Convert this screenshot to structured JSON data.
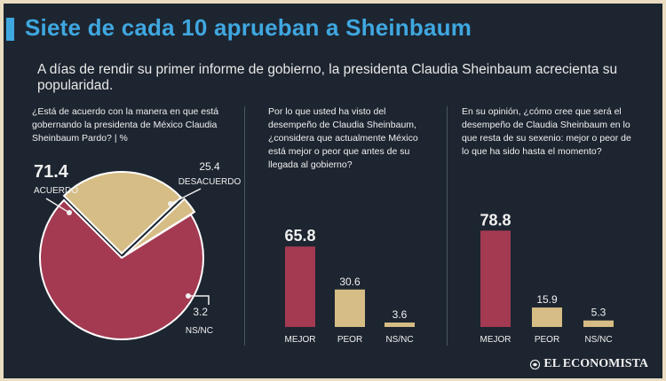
{
  "header": {
    "title": "Siete de cada 10 aprueban a Sheinbaum",
    "subtitle": "A días de rendir su primer informe de gobierno, la presidenta Claudia Sheinbaum acrecienta su popularidad."
  },
  "colors": {
    "background": "#1d2530",
    "accent": "#3fa7e0",
    "maroon": "#a33a52",
    "tan": "#d6bd85",
    "text": "#f0f0f0"
  },
  "brand": {
    "logo_text": "EL ECONOMISTA"
  },
  "chart_data": [
    {
      "type": "pie",
      "question": "¿Está de acuerdo con la manera en que está gobernando la presidenta de México Claudia Sheinbaum Pardo? | %",
      "slices": [
        {
          "label": "ACUERDO",
          "value": 71.4,
          "display": "71.4"
        },
        {
          "label": "DESACUERDO",
          "value": 25.4,
          "display": "25.4"
        },
        {
          "label": "NS/NC",
          "value": 3.2,
          "display": "3.2"
        }
      ]
    },
    {
      "type": "bar",
      "question": "Por lo que usted ha visto del desempeño de Claudia Sheinbaum, ¿considera que actualmente México está mejor o peor que antes de su llegada al gobierno?",
      "categories": [
        "MEJOR",
        "PEOR",
        "NS/NC"
      ],
      "values": [
        65.8,
        30.6,
        3.6
      ],
      "value_labels": [
        "65.8",
        "30.6",
        "3.6"
      ],
      "ylim": [
        0,
        100
      ]
    },
    {
      "type": "bar",
      "question": "En su opinión, ¿cómo cree que será el desempeño de Claudia Sheinbaum en lo que resta de su sexenio: mejor o peor de lo que ha sido hasta el momento?",
      "categories": [
        "MEJOR",
        "PEOR",
        "NS/NC"
      ],
      "values": [
        78.8,
        15.9,
        5.3
      ],
      "value_labels": [
        "78.8",
        "15.9",
        "5.3"
      ],
      "ylim": [
        0,
        100
      ]
    }
  ]
}
